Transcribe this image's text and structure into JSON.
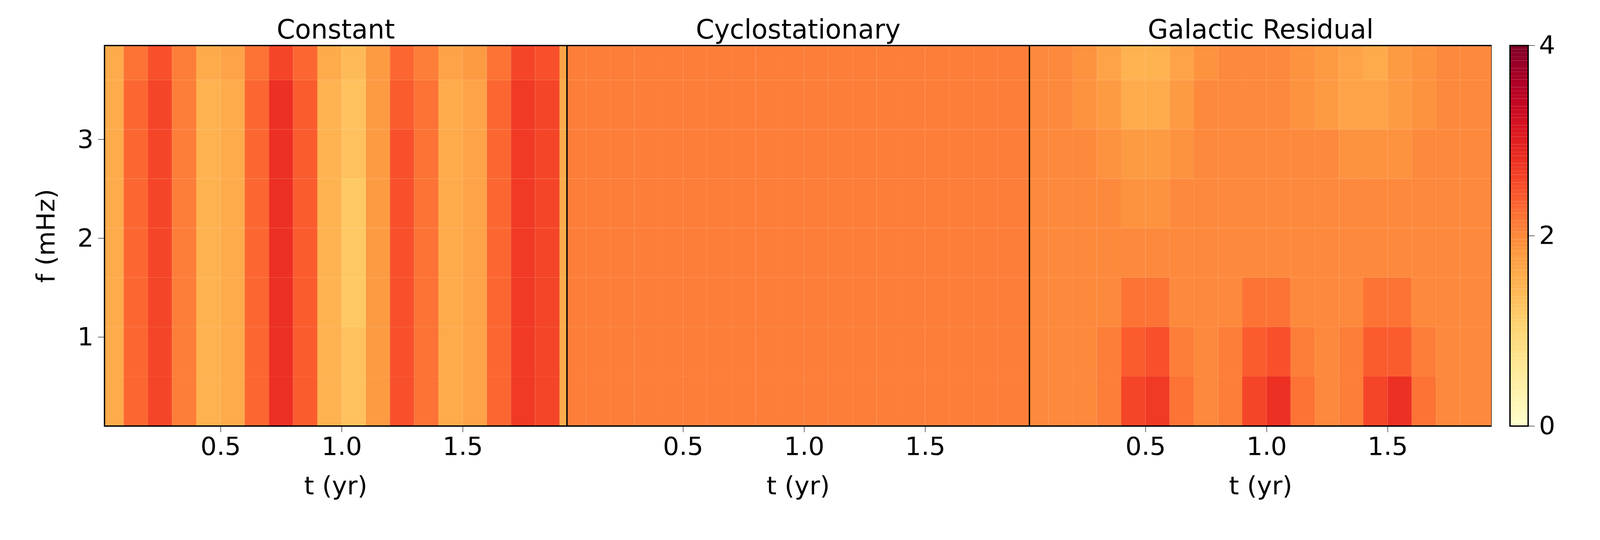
{
  "chart_data": [
    {
      "type": "heatmap",
      "title": "Constant",
      "x_label": "t (yr)",
      "y_label": "f (mHz)",
      "xlim": [
        0.02,
        1.93
      ],
      "ylim": [
        0.1,
        3.95
      ],
      "xticks": [
        0.5,
        {
          "value": 1,
          "label": "1.0"
        },
        1.5
      ],
      "yticks": [
        1,
        2,
        3
      ],
      "color": "YlOrRd",
      "t_bins": [
        0,
        0.1,
        0.2,
        0.3,
        0.4,
        0.5,
        0.6,
        0.7,
        0.8,
        0.9,
        1.0,
        1.1,
        1.2,
        1.3,
        1.4,
        1.5,
        1.6,
        1.7,
        1.8,
        1.9,
        2.0
      ],
      "f_bins": [
        0.1,
        0.6,
        1.1,
        1.6,
        2.1,
        2.6,
        3.1,
        3.6,
        3.95
      ],
      "cells": [
        [
          1.6,
          2.3,
          2.6,
          2.1,
          1.5,
          1.6,
          2.3,
          2.8,
          2.4,
          1.5,
          1.3,
          1.8,
          2.5,
          2.2,
          1.6,
          1.7,
          2.3,
          2.7,
          2.6,
          1.6
        ],
        [
          1.6,
          2.3,
          2.6,
          2.1,
          1.5,
          1.6,
          2.3,
          2.8,
          2.4,
          1.5,
          1.3,
          1.8,
          2.5,
          2.2,
          1.6,
          1.7,
          2.3,
          2.7,
          2.6,
          1.6
        ],
        [
          1.6,
          2.3,
          2.6,
          2.1,
          1.5,
          1.6,
          2.3,
          2.8,
          2.4,
          1.5,
          1.2,
          1.8,
          2.5,
          2.2,
          1.6,
          1.7,
          2.3,
          2.7,
          2.6,
          1.6
        ],
        [
          1.6,
          2.3,
          2.6,
          2.1,
          1.5,
          1.6,
          2.3,
          2.8,
          2.4,
          1.5,
          1.2,
          1.8,
          2.5,
          2.2,
          1.6,
          1.7,
          2.3,
          2.7,
          2.6,
          1.6
        ],
        [
          1.6,
          2.3,
          2.6,
          2.1,
          1.5,
          1.6,
          2.3,
          2.8,
          2.4,
          1.5,
          1.2,
          1.8,
          2.5,
          2.2,
          1.6,
          1.7,
          2.3,
          2.7,
          2.6,
          1.6
        ],
        [
          1.6,
          2.3,
          2.6,
          2.1,
          1.5,
          1.6,
          2.3,
          2.8,
          2.4,
          1.5,
          1.3,
          1.8,
          2.5,
          2.2,
          1.6,
          1.7,
          2.3,
          2.7,
          2.6,
          1.6
        ],
        [
          1.6,
          2.3,
          2.6,
          2.1,
          1.5,
          1.6,
          2.3,
          2.8,
          2.4,
          1.5,
          1.3,
          1.8,
          2.4,
          2.2,
          1.6,
          1.7,
          2.3,
          2.7,
          2.6,
          1.6
        ],
        [
          1.6,
          2.2,
          2.5,
          2.1,
          1.6,
          1.7,
          2.2,
          2.6,
          2.3,
          1.6,
          1.4,
          1.8,
          2.3,
          2.1,
          1.7,
          1.8,
          2.2,
          2.6,
          2.5,
          1.7
        ]
      ]
    },
    {
      "type": "heatmap",
      "title": "Cyclostationary",
      "x_label": "t (yr)",
      "xlim": [
        0.02,
        1.93
      ],
      "ylim": [
        0.1,
        3.95
      ],
      "xticks": [
        0.5,
        {
          "value": 1,
          "label": "1.0"
        },
        1.5
      ],
      "yticks": [
        1,
        2,
        3
      ],
      "tick_labels": "x",
      "color": "YlOrRd",
      "t_bins": [
        0,
        0.1,
        0.2,
        0.3,
        0.4,
        0.5,
        0.6,
        0.7,
        0.8,
        0.9,
        1.0,
        1.1,
        1.2,
        1.3,
        1.4,
        1.5,
        1.6,
        1.7,
        1.8,
        1.9,
        2.0
      ],
      "f_bins": [
        0.1,
        0.6,
        1.1,
        1.6,
        2.1,
        2.6,
        3.1,
        3.6,
        3.95
      ],
      "cells": [
        [
          2.1,
          2.1,
          2.1,
          2.1,
          2.1,
          2.1,
          2.1,
          2.1,
          2.1,
          2.1,
          2.1,
          2.1,
          2.1,
          2.1,
          2.1,
          2.1,
          2.1,
          2.1,
          2.1,
          2.1
        ],
        [
          2.1,
          2.1,
          2.1,
          2.1,
          2.1,
          2.1,
          2.1,
          2.1,
          2.1,
          2.1,
          2.1,
          2.1,
          2.1,
          2.1,
          2.1,
          2.1,
          2.1,
          2.1,
          2.1,
          2.1
        ],
        [
          2.1,
          2.1,
          2.1,
          2.1,
          2.1,
          2.1,
          2.1,
          2.1,
          2.1,
          2.1,
          2.1,
          2.1,
          2.1,
          2.1,
          2.1,
          2.1,
          2.1,
          2.1,
          2.1,
          2.1
        ],
        [
          2.1,
          2.1,
          2.1,
          2.1,
          2.1,
          2.1,
          2.1,
          2.1,
          2.1,
          2.1,
          2.1,
          2.1,
          2.1,
          2.1,
          2.1,
          2.1,
          2.1,
          2.1,
          2.1,
          2.1
        ],
        [
          2.1,
          2.1,
          2.1,
          2.1,
          2.1,
          2.1,
          2.1,
          2.1,
          2.1,
          2.1,
          2.1,
          2.1,
          2.1,
          2.1,
          2.1,
          2.1,
          2.1,
          2.1,
          2.1,
          2.1
        ],
        [
          2.1,
          2.1,
          2.1,
          2.1,
          2.1,
          2.1,
          2.1,
          2.1,
          2.1,
          2.1,
          2.1,
          2.1,
          2.1,
          2.1,
          2.1,
          2.1,
          2.1,
          2.1,
          2.1,
          2.1
        ],
        [
          2.1,
          2.1,
          2.1,
          2.1,
          2.1,
          2.1,
          2.1,
          2.1,
          2.1,
          2.1,
          2.1,
          2.1,
          2.1,
          2.1,
          2.1,
          2.1,
          2.1,
          2.1,
          2.1,
          2.1
        ],
        [
          2.1,
          2.1,
          2.1,
          2.1,
          2.1,
          2.1,
          2.1,
          2.1,
          2.1,
          2.1,
          2.1,
          2.1,
          2.1,
          2.1,
          2.1,
          2.1,
          2.1,
          2.1,
          2.1,
          2.1
        ]
      ]
    },
    {
      "type": "heatmap",
      "title": "Galactic Residual",
      "x_label": "t (yr)",
      "xlim": [
        0.02,
        1.93
      ],
      "ylim": [
        0.1,
        3.95
      ],
      "xticks": [
        0.5,
        {
          "value": 1,
          "label": "1.0"
        },
        1.5
      ],
      "yticks": [
        1,
        2,
        3
      ],
      "tick_labels": "x",
      "color": "YlOrRd",
      "colorbar_range": [
        0,
        4
      ],
      "colorbar_ticks": [
        0,
        2,
        4
      ],
      "t_bins": [
        0,
        0.1,
        0.2,
        0.3,
        0.4,
        0.5,
        0.6,
        0.7,
        0.8,
        0.9,
        1.0,
        1.1,
        1.2,
        1.3,
        1.4,
        1.5,
        1.6,
        1.7,
        1.8,
        1.9,
        2.0
      ],
      "f_bins": [
        0.1,
        0.6,
        1.1,
        1.6,
        2.1,
        2.6,
        3.1,
        3.6,
        3.95
      ],
      "cells": [
        [
          2.0,
          2.0,
          2.0,
          2.1,
          2.6,
          2.7,
          2.2,
          2.0,
          2.1,
          2.6,
          2.8,
          2.2,
          2.0,
          2.1,
          2.6,
          2.8,
          2.2,
          2.0,
          2.0,
          2.0
        ],
        [
          2.0,
          2.0,
          2.0,
          2.1,
          2.4,
          2.5,
          2.1,
          2.0,
          2.1,
          2.4,
          2.5,
          2.1,
          2.0,
          2.1,
          2.4,
          2.4,
          2.1,
          2.0,
          2.0,
          2.0
        ],
        [
          2.0,
          2.0,
          2.0,
          2.0,
          2.2,
          2.2,
          2.0,
          2.0,
          2.0,
          2.2,
          2.2,
          2.0,
          2.0,
          2.0,
          2.2,
          2.2,
          2.0,
          2.0,
          2.0,
          2.0
        ],
        [
          2.0,
          2.0,
          2.0,
          2.0,
          2.0,
          2.0,
          2.0,
          2.0,
          2.0,
          2.0,
          2.0,
          2.0,
          2.0,
          2.0,
          2.0,
          2.0,
          2.0,
          2.0,
          2.0,
          2.0
        ],
        [
          2.0,
          2.0,
          2.0,
          2.0,
          1.9,
          1.9,
          2.0,
          2.0,
          2.0,
          2.0,
          2.0,
          2.0,
          2.0,
          2.0,
          2.0,
          2.0,
          2.0,
          2.0,
          2.0,
          2.0
        ],
        [
          2.0,
          2.0,
          2.0,
          1.9,
          1.8,
          1.8,
          1.9,
          2.0,
          2.0,
          2.0,
          2.0,
          2.0,
          2.0,
          1.9,
          1.9,
          1.9,
          2.0,
          2.0,
          2.0,
          2.0
        ],
        [
          2.0,
          2.0,
          1.9,
          1.8,
          1.6,
          1.6,
          1.8,
          2.0,
          2.0,
          2.0,
          2.0,
          1.9,
          1.8,
          1.7,
          1.7,
          1.8,
          1.9,
          2.0,
          2.0,
          2.0
        ],
        [
          2.0,
          2.0,
          1.9,
          1.7,
          1.5,
          1.5,
          1.7,
          1.9,
          2.0,
          2.0,
          2.0,
          1.9,
          1.8,
          1.7,
          1.6,
          1.8,
          1.9,
          2.0,
          2.0,
          2.0
        ]
      ]
    }
  ]
}
